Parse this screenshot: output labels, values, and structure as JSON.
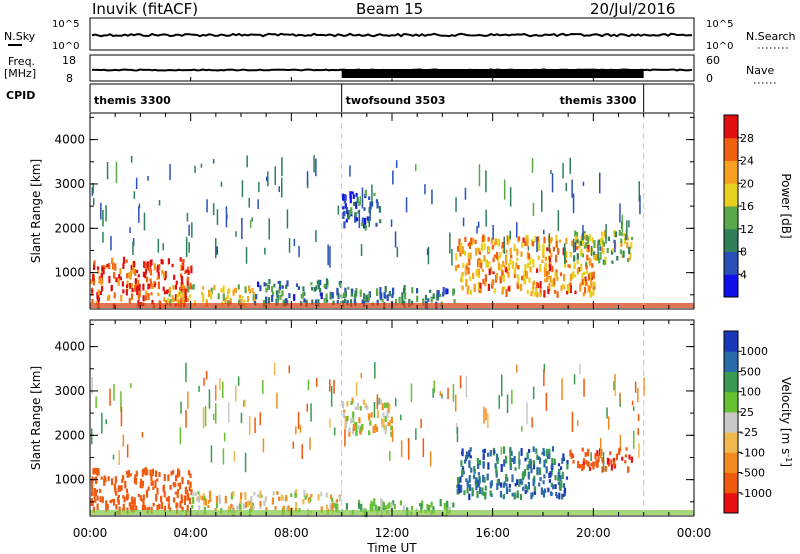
{
  "header": {
    "station": "Inuvik (fitACF)",
    "beam": "Beam 15",
    "date": "20/Jul/2016"
  },
  "noise_panel": {
    "left_label": "N.Sky",
    "left_ticks": [
      "10^5",
      "10^0"
    ],
    "right_label": "N.Search",
    "right_ticks": [
      "10^5",
      "10^0"
    ]
  },
  "freq_panel": {
    "left_label_1": "Freq.",
    "left_label_2": "[MHz]",
    "left_ticks": [
      "18",
      "8"
    ],
    "right_label": "Nave",
    "right_ticks": [
      "60",
      "0"
    ]
  },
  "cpid_panel": {
    "label": "CPID",
    "segments": [
      {
        "name": "themis 3300",
        "start_h": 0,
        "end_h": 10
      },
      {
        "name": "twofsound 3503",
        "start_h": 10,
        "end_h": 22
      },
      {
        "name": "themis 3300",
        "start_h": 22,
        "end_h": 24
      }
    ]
  },
  "x_axis": {
    "label": "Time UT",
    "ticks": [
      "00:00",
      "04:00",
      "08:00",
      "12:00",
      "16:00",
      "20:00",
      "00:00"
    ]
  },
  "colors": {
    "power": [
      "#1010ee",
      "#2a4fb8",
      "#2f7f5a",
      "#5aa84a",
      "#e8d020",
      "#f6a020",
      "#f06010",
      "#e01010"
    ],
    "velocity": [
      "#e81010",
      "#f05a10",
      "#f28a20",
      "#f2b850",
      "#c8c8c8",
      "#66c030",
      "#3a9a50",
      "#2a6aa8",
      "#1838b8"
    ]
  },
  "chart_data": [
    {
      "type": "heatmap",
      "title": "Power",
      "ylabel": "Slant Range [km]",
      "xlabel": "",
      "xlim": [
        0,
        24
      ],
      "ylim": [
        180,
        4600
      ],
      "yticks": [
        "1000",
        "2000",
        "3000",
        "4000"
      ],
      "colorbar": {
        "label": "Power [dB]",
        "ticks": [
          "4",
          "8",
          "12",
          "16",
          "20",
          "24",
          "28"
        ],
        "range": [
          0,
          30
        ]
      },
      "regions": [
        {
          "t0": 0.0,
          "t1": 4.0,
          "r0": 250,
          "r1": 1300,
          "level": 26
        },
        {
          "t0": 3.0,
          "t1": 6.5,
          "r0": 300,
          "r1": 700,
          "level": 17
        },
        {
          "t0": 6.5,
          "t1": 10.0,
          "r0": 300,
          "r1": 800,
          "level": 9
        },
        {
          "t0": 10.0,
          "t1": 14.5,
          "r0": 250,
          "r1": 650,
          "level": 9
        },
        {
          "t0": 14.5,
          "t1": 20.0,
          "r0": 500,
          "r1": 1800,
          "level": 21
        },
        {
          "t0": 19.0,
          "t1": 21.5,
          "r0": 1200,
          "r1": 1900,
          "level": 14
        },
        {
          "t0": 10.0,
          "t1": 11.5,
          "r0": 2000,
          "r1": 2800,
          "level": 7
        }
      ]
    },
    {
      "type": "heatmap",
      "title": "Velocity",
      "ylabel": "Slant Range [km]",
      "xlabel": "Time UT",
      "xlim": [
        0,
        24
      ],
      "ylim": [
        180,
        4600
      ],
      "yticks": [
        "1000",
        "2000",
        "3000",
        "4000"
      ],
      "colorbar": {
        "label": "Velocity [m s^-1]",
        "ticks": [
          "1000",
          "500",
          "100",
          "25",
          "-25",
          "-100",
          "-500",
          "-1000"
        ],
        "range": [
          -1000,
          1000
        ]
      },
      "regions": [
        {
          "t0": 0.0,
          "t1": 4.0,
          "r0": 250,
          "r1": 1200,
          "level": -300
        },
        {
          "t0": 4.0,
          "t1": 10.0,
          "r0": 250,
          "r1": 700,
          "level": 0
        },
        {
          "t0": 10.0,
          "t1": 14.5,
          "r0": 200,
          "r1": 500,
          "level": 60
        },
        {
          "t0": 14.5,
          "t1": 19.0,
          "r0": 600,
          "r1": 1700,
          "level": 700
        },
        {
          "t0": 19.0,
          "t1": 21.5,
          "r0": 1200,
          "r1": 1700,
          "level": -400
        },
        {
          "t0": 10.0,
          "t1": 12.0,
          "r0": 2000,
          "r1": 2800,
          "level": 0
        }
      ]
    }
  ]
}
